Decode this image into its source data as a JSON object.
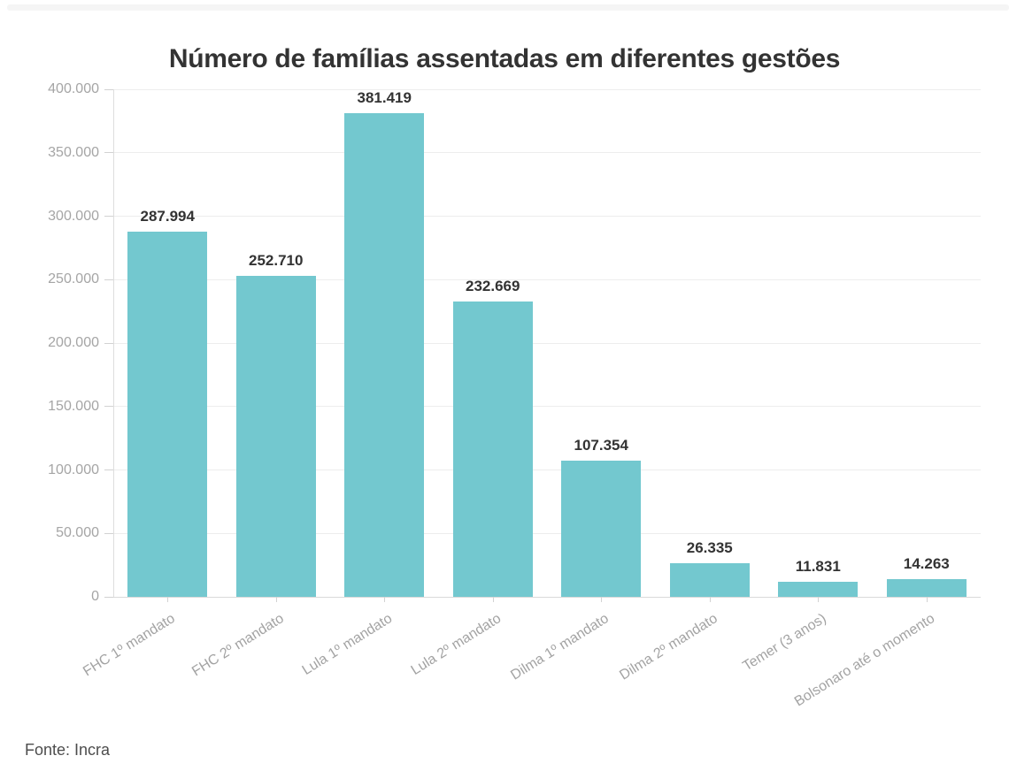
{
  "title": "Número de famílias assentadas em diferentes gestões",
  "source_note": "Fonte: Incra",
  "colors": {
    "bar": "#73c8cf",
    "title_text": "#333333",
    "value_label_text": "#333333",
    "axis_label_text": "#a5a5a5",
    "grid_line": "#ededed",
    "axis_line": "#dedede",
    "source_text": "#4d4d4d",
    "background": "#ffffff"
  },
  "chart_data": {
    "type": "bar",
    "title": "Número de famílias assentadas em diferentes gestões",
    "categories": [
      "FHC 1º mandato",
      "FHC 2º mandato",
      "Lula 1º mandato",
      "Lula 2º mandato",
      "Dilma 1º mandato",
      "Dilma 2º mandato",
      "Temer (3 anos)",
      "Bolsonaro até o momento"
    ],
    "values": [
      287994,
      252710,
      381419,
      232669,
      107354,
      26335,
      11831,
      14263
    ],
    "value_labels": [
      "287.994",
      "252.710",
      "381.419",
      "232.669",
      "107.354",
      "26.335",
      "11.831",
      "14.263"
    ],
    "xlabel": "",
    "ylabel": "",
    "ylim": [
      0,
      400000
    ],
    "ytick_interval": 50000,
    "ytick_labels": [
      "0",
      "50.000",
      "100.000",
      "150.000",
      "200.000",
      "250.000",
      "300.000",
      "350.000",
      "400.000"
    ],
    "grid": "horizontal",
    "legend": "none",
    "x_label_rotation_deg": -32,
    "source": "Fonte: Incra"
  }
}
